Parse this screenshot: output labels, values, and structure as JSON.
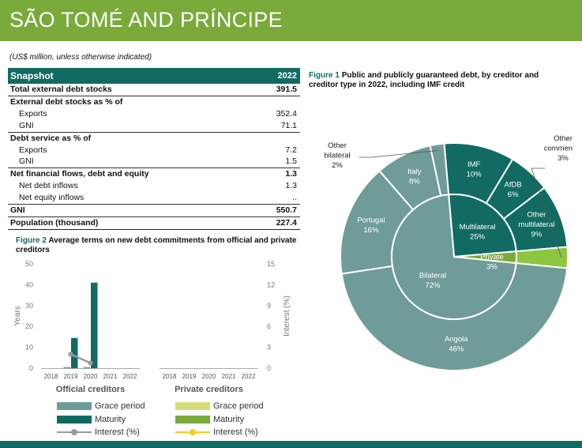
{
  "header": {
    "title": "SÃO TOMÉ AND PRÍNCIPE"
  },
  "units_note": "(US$ million, unless otherwise indicated)",
  "snapshot": {
    "title": "Snapshot",
    "year": "2022",
    "rows": [
      {
        "label": "Total external debt stocks",
        "value": "391.5"
      },
      {
        "label": "External debt stocks as % of",
        "value": ""
      },
      {
        "label": "Exports",
        "value": "352.4"
      },
      {
        "label": "GNI",
        "value": "71.1"
      },
      {
        "label": "Debt service as % of",
        "value": ""
      },
      {
        "label": "Exports",
        "value": "7.2"
      },
      {
        "label": "GNI",
        "value": "1.5"
      },
      {
        "label": "Net financial flows, debt and equity",
        "value": "1.3"
      },
      {
        "label": "Net debt inflows",
        "value": "1.3"
      },
      {
        "label": "Net equity inflows",
        "value": ".."
      },
      {
        "label": "GNI",
        "value": "550.7"
      },
      {
        "label": "Population (thousand)",
        "value": "227.4"
      }
    ]
  },
  "figure1": {
    "number": "Figure 1",
    "title": "Public and publicly guaranteed debt, by creditor and creditor type in 2022, including IMF credit"
  },
  "figure2": {
    "number": "Figure 2",
    "title": "Average terms on new debt commitments from official and private creditors"
  },
  "chart_data": [
    {
      "type": "bar",
      "ylabel": "Years",
      "y2label": "Interest (%)",
      "ylim": [
        0,
        50
      ],
      "yticks": [
        "0",
        "10",
        "20",
        "30",
        "40",
        "50"
      ],
      "y2lim": [
        0,
        15
      ],
      "y2ticks": [
        "0",
        "3",
        "6",
        "9",
        "12",
        "15"
      ],
      "groups": [
        {
          "name": "Official creditors",
          "categories": [
            "2018",
            "2019",
            "2020",
            "2021",
            "2022"
          ],
          "series": [
            {
              "name": "Grace period",
              "color": "#6f9c99",
              "values": [
                0,
                0.5,
                0.5,
                0,
                0
              ]
            },
            {
              "name": "Maturity",
              "color": "#116b62",
              "values": [
                0,
                14.5,
                41,
                0,
                0
              ]
            },
            {
              "name": "Interest (%)",
              "color": "#9a9a9a",
              "values": [
                null,
                2,
                0.75,
                null,
                null
              ],
              "axis": "right",
              "kind": "line"
            }
          ]
        },
        {
          "name": "Private creditors",
          "categories": [
            "2018",
            "2019",
            "2020",
            "2021",
            "2022"
          ],
          "series": [
            {
              "name": "Grace period",
              "color": "#d4df7a",
              "values": [
                0,
                0,
                0,
                0,
                0
              ]
            },
            {
              "name": "Maturity",
              "color": "#7aaa3a",
              "values": [
                0,
                0,
                0,
                0,
                0
              ]
            },
            {
              "name": "Interest (%)",
              "color": "#f2d017",
              "values": [
                null,
                null,
                null,
                null,
                null
              ],
              "axis": "right",
              "kind": "line"
            }
          ]
        }
      ]
    },
    {
      "type": "pie",
      "inner": [
        {
          "label": "Multilateral",
          "pct": "25%",
          "value": 25,
          "color": "#116b62"
        },
        {
          "label": "Private",
          "pct": "3%",
          "value": 3,
          "color": "#7aaa3a"
        },
        {
          "label": "Bilateral",
          "pct": "72%",
          "value": 72,
          "color": "#6f9c99"
        }
      ],
      "outer": [
        {
          "label": "IMF",
          "pct": "10%",
          "value": 10,
          "color": "#116b62"
        },
        {
          "label": "AfDB",
          "pct": "6%",
          "value": 6,
          "color": "#116b62"
        },
        {
          "label": "Other multilateral",
          "pct": "9%",
          "value": 9,
          "color": "#116b62"
        },
        {
          "label": "Other commercial",
          "pct": "3%",
          "value": 3,
          "color": "#8dc63f"
        },
        {
          "label": "Angola",
          "pct": "46%",
          "value": 46,
          "color": "#6f9c99"
        },
        {
          "label": "Portugal",
          "pct": "16%",
          "value": 16,
          "color": "#6f9c99"
        },
        {
          "label": "Italy",
          "pct": "8%",
          "value": 8,
          "color": "#6f9c99"
        },
        {
          "label": "Other bilateral",
          "pct": "2%",
          "value": 2,
          "color": "#6f9c99"
        }
      ]
    }
  ]
}
